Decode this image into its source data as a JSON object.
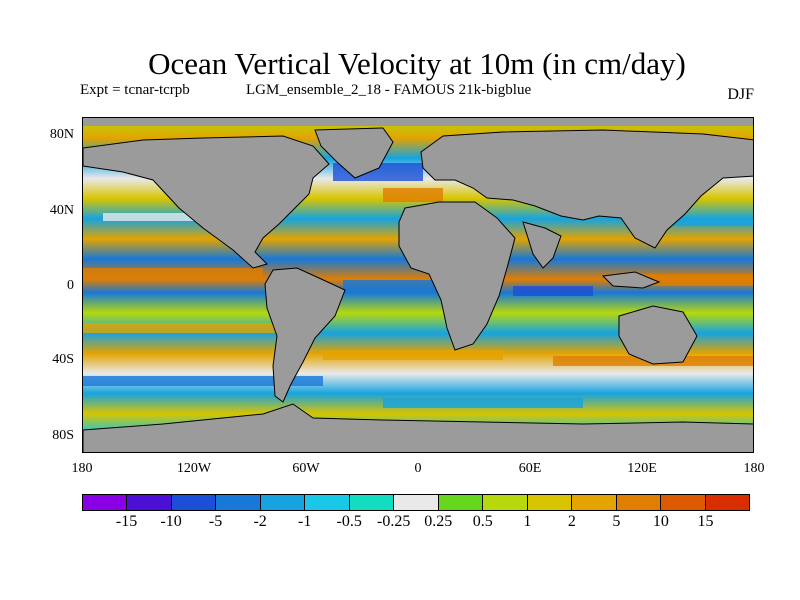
{
  "title": "Ocean Vertical Velocity at 10m (in cm/day)",
  "experiment": "Expt = tcnar-tcrpb",
  "run_label": "LGM_ensemble_2_18 - FAMOUS 21k-bigblue",
  "season": "DJF",
  "map": {
    "projection": "cylindrical equidistant",
    "land_color": "#9b9b9b",
    "coastline_color": "#000000",
    "lat_labels": [
      "80N",
      "40N",
      "0",
      "40S",
      "80S"
    ],
    "lon_labels": [
      "180",
      "120W",
      "60W",
      "0",
      "60E",
      "120E",
      "180"
    ]
  },
  "colorbar": {
    "colors": [
      "#8a00e6",
      "#4b0fd6",
      "#1b4fd8",
      "#1778d8",
      "#16a3e0",
      "#18c8e6",
      "#14dcc0",
      "#e9e9e9",
      "#66d61d",
      "#b6d80c",
      "#d8c400",
      "#e3a300",
      "#e07e00",
      "#dd5a00",
      "#d82e00"
    ],
    "labels": [
      "-15",
      "-10",
      "-5",
      "-2",
      "-1",
      "-0.5",
      "-0.25",
      "0.25",
      "0.5",
      "1",
      "2",
      "5",
      "10",
      "15"
    ]
  }
}
